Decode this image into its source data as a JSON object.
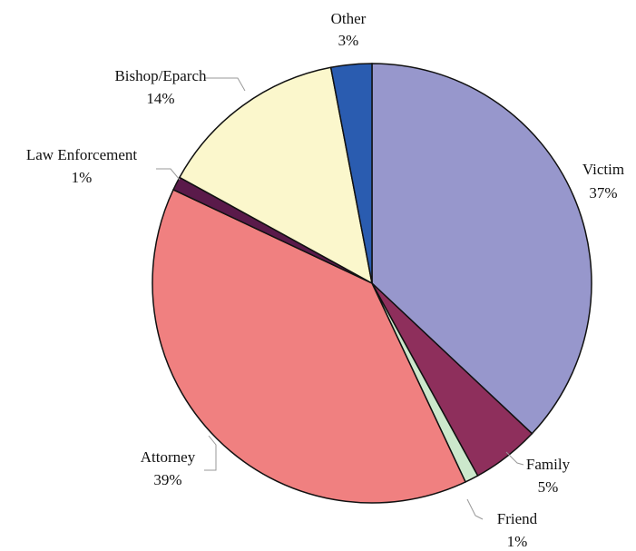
{
  "chart_data": {
    "type": "pie",
    "categories": [
      "Victim",
      "Family",
      "Friend",
      "Attorney",
      "Law Enforcement",
      "Bishop/Eparch",
      "Other"
    ],
    "values": [
      37,
      5,
      1,
      39,
      1,
      14,
      3
    ],
    "value_labels": [
      "37%",
      "5%",
      "1%",
      "39%",
      "1%",
      "14%",
      "3%"
    ],
    "colors": [
      "#9797cc",
      "#8e2f5c",
      "#cce8cc",
      "#f08080",
      "#5a1a4a",
      "#fbf7cc",
      "#2a5cb0"
    ]
  }
}
